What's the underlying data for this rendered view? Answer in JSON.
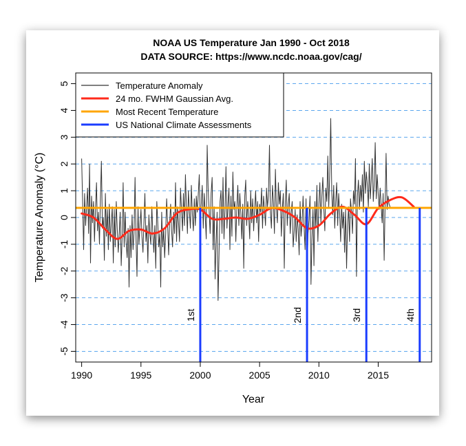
{
  "chart_data": {
    "type": "line",
    "title": "NOAA US Temperature Jan 1990 - Oct 2018",
    "subtitle": "DATA SOURCE: https://www.ncdc.noaa.gov/cag/",
    "xlabel": "Year",
    "ylabel": "Temperature Anomaly (°C)",
    "xlim": [
      1989.5,
      2019.5
    ],
    "ylim": [
      -5.4,
      5.4
    ],
    "x_ticks": [
      1990,
      1995,
      2000,
      2005,
      2010,
      2015
    ],
    "y_ticks": [
      5,
      4,
      3,
      2,
      1,
      0,
      -1,
      -2,
      -3,
      -4,
      -5
    ],
    "grid": "horizontal dashed",
    "legend_position": "top-left",
    "legend": [
      {
        "label": "Temperature Anomaly",
        "color": "#333333"
      },
      {
        "label": "24 mo. FWHM Gaussian Avg.",
        "color": "#ff2a1a"
      },
      {
        "label": "Most Recent Temperature",
        "color": "#ffa500"
      },
      {
        "label": "US National Climate Assessments",
        "color": "#1a3cff"
      }
    ],
    "most_recent_temperature": 0.36,
    "assessments": [
      {
        "x": 2000.0,
        "label": "1st"
      },
      {
        "x": 2009.0,
        "label": "2nd"
      },
      {
        "x": 2014.0,
        "label": "3rd"
      },
      {
        "x": 2018.5,
        "label": "4th"
      }
    ],
    "series": [
      {
        "name": "24 mo. FWHM Gaussian Avg.",
        "color": "#ff2a1a",
        "x": [
          1990,
          1991,
          1992,
          1993,
          1994,
          1995,
          1996,
          1997,
          1998,
          1999,
          2000,
          2001,
          2002,
          2003,
          2004,
          2005,
          2006,
          2007,
          2008,
          2009,
          2010,
          2011,
          2012,
          2013,
          2014,
          2015,
          2016,
          2017,
          2018
        ],
        "values": [
          0.15,
          0.0,
          -0.45,
          -0.8,
          -0.5,
          -0.45,
          -0.6,
          -0.4,
          0.15,
          0.3,
          0.3,
          -0.05,
          -0.05,
          0.0,
          -0.05,
          0.1,
          0.35,
          0.25,
          0.0,
          -0.4,
          -0.3,
          0.15,
          0.4,
          0.1,
          -0.25,
          0.35,
          0.65,
          0.75,
          0.4
        ]
      },
      {
        "name": "Temperature Anomaly",
        "color": "#333333",
        "x_start": 1990.0,
        "x_step": 0.0833333,
        "values": [
          2.2,
          0.5,
          -1.2,
          0.9,
          -0.3,
          0.4,
          1.1,
          -0.6,
          2.0,
          -1.7,
          0.8,
          -0.2,
          0.6,
          -0.9,
          0.3,
          1.3,
          -0.5,
          0.2,
          -1.0,
          0.7,
          2.1,
          -0.4,
          0.0,
          -1.6,
          0.9,
          -0.7,
          0.3,
          -1.2,
          0.5,
          -0.9,
          -0.2,
          0.4,
          -1.7,
          0.3,
          -1.1,
          0.6,
          -0.4,
          -1.3,
          -0.6,
          0.2,
          -1.8,
          -0.7,
          1.3,
          -1.1,
          0.2,
          -0.9,
          -1.5,
          -0.4,
          -2.6,
          -0.3,
          -1.5,
          0.1,
          -1.2,
          -0.6,
          1.5,
          -0.8,
          -2.2,
          0.4,
          -1.0,
          -0.3,
          0.3,
          -0.7,
          -1.3,
          -0.2,
          0.9,
          -0.9,
          -0.3,
          -1.7,
          0.1,
          -0.6,
          -1.0,
          0.4,
          -0.6,
          -1.3,
          -0.3,
          -1.9,
          0.6,
          -0.2,
          -1.1,
          -0.6,
          -2.6,
          0.2,
          -1.1,
          -0.4,
          -1.5,
          -0.6,
          0.7,
          -0.3,
          -1.4,
          -0.2,
          0.5,
          -0.5,
          -1.1,
          0.2,
          -0.6,
          1.3,
          -0.9,
          0.4,
          -0.2,
          -0.9,
          1.1,
          0.3,
          -0.5,
          0.9,
          -0.3,
          1.6,
          0.4,
          -0.6,
          1.0,
          0.2,
          -0.4,
          1.2,
          0.1,
          -0.5,
          0.7,
          -0.3,
          0.8,
          0.2,
          0.9,
          1.6,
          -0.2,
          0.5,
          1.2,
          -0.4,
          0.9,
          0.1,
          -0.8,
          2.7,
          1.1,
          0.2,
          -0.6,
          0.9,
          1.5,
          -1.2,
          0.4,
          -2.3,
          -1.0,
          0.2,
          -3.1,
          -1.4,
          0.6,
          1.0,
          -0.6,
          1.5,
          -0.8,
          0.3,
          1.9,
          -0.4,
          0.5,
          1.1,
          -1.2,
          0.8,
          -0.7,
          1.7,
          0.3,
          0.6,
          -0.9,
          0.4,
          1.2,
          -0.3,
          0.9,
          0.2,
          -0.8,
          0.5,
          -1.9,
          0.8,
          1.4,
          -0.3,
          0.6,
          0.1,
          -0.8,
          1.0,
          -0.2,
          0.7,
          -0.5,
          0.3,
          1.0,
          -0.2,
          0.6,
          -0.9,
          0.5,
          0.2,
          1.1,
          -0.4,
          0.8,
          0.3,
          -0.3,
          1.1,
          0.4,
          0.8,
          2.7,
          0.2,
          -0.4,
          1.2,
          0.6,
          -0.6,
          1.8,
          0.4,
          -0.2,
          1.3,
          0.5,
          1.0,
          -0.7,
          0.3,
          0.9,
          -1.9,
          0.6,
          1.4,
          -0.3,
          0.5,
          0.9,
          -0.6,
          0.2,
          0.6,
          -1.1,
          -0.5,
          0.3,
          -0.9,
          0.1,
          -0.4,
          -1.4,
          0.6,
          -0.7,
          -0.2,
          0.8,
          -0.3,
          -1.2,
          0.7,
          -2.3,
          -0.6,
          -0.1,
          0.8,
          -2.5,
          -0.8,
          0.3,
          -1.8,
          0.6,
          -0.4,
          1.2,
          -0.9,
          0.5,
          1.3,
          -0.2,
          0.8,
          1.5,
          0.3,
          -0.5,
          1.1,
          0.6,
          2.3,
          0.4,
          1.7,
          3.7,
          0.9,
          0.1,
          1.2,
          -0.4,
          0.6,
          1.3,
          -0.3,
          0.9,
          0.2,
          -0.9,
          0.5,
          -0.4,
          0.2,
          -1.3,
          0.3,
          -1.9,
          -0.3,
          0.4,
          -0.9,
          0.7,
          0.2,
          -0.6,
          1.0,
          0.5,
          2.2,
          -2.2,
          0.8,
          1.4,
          0.3,
          1.2,
          0.6,
          1.6,
          0.2,
          2.1,
          0.9,
          1.7,
          1.2,
          0.4,
          2.0,
          0.7,
          1.4,
          2.2,
          0.6,
          1.3,
          2.8,
          0.7,
          1.6,
          0.9,
          0.3,
          1.1,
          0.4,
          -0.2,
          0.9,
          -1.6,
          0.5,
          2.4,
          0.3,
          0.8,
          0.5,
          0.4
        ]
      }
    ]
  }
}
